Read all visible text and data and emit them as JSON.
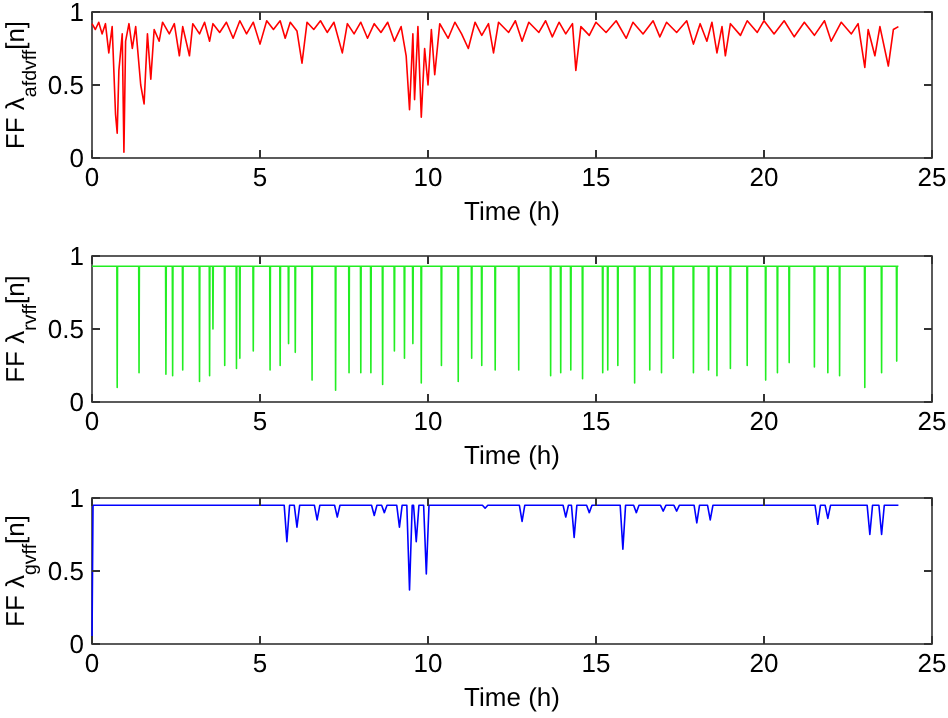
{
  "chart_data": [
    {
      "type": "line",
      "xlabel": "Time (h)",
      "ylabel": "FF λ$_{afdvff}$[n]",
      "xlim": [
        0,
        25
      ],
      "xticks": [
        0,
        5,
        10,
        15,
        20,
        25
      ],
      "ylim": [
        0,
        1
      ],
      "yticks": [
        0,
        0.5,
        1
      ],
      "series": [
        {
          "color": "#ff0000",
          "x": [
            0,
            0.1,
            0.2,
            0.3,
            0.4,
            0.5,
            0.6,
            0.7,
            0.75,
            0.8,
            0.9,
            0.95,
            1.0,
            1.1,
            1.2,
            1.3,
            1.45,
            1.55,
            1.65,
            1.75,
            1.85,
            2.0,
            2.1,
            2.3,
            2.45,
            2.6,
            2.7,
            2.9,
            3.0,
            3.2,
            3.35,
            3.5,
            3.6,
            3.8,
            4.0,
            4.2,
            4.4,
            4.6,
            4.8,
            5.0,
            5.2,
            5.4,
            5.6,
            5.75,
            5.9,
            6.1,
            6.25,
            6.4,
            6.6,
            6.8,
            7.0,
            7.2,
            7.45,
            7.6,
            7.8,
            8.0,
            8.2,
            8.4,
            8.6,
            8.8,
            9.0,
            9.2,
            9.35,
            9.45,
            9.55,
            9.6,
            9.7,
            9.8,
            9.9,
            10.0,
            10.1,
            10.2,
            10.35,
            10.6,
            10.8,
            11.0,
            11.2,
            11.4,
            11.6,
            11.8,
            11.95,
            12.1,
            12.4,
            12.6,
            12.8,
            13.0,
            13.3,
            13.5,
            13.7,
            13.9,
            14.1,
            14.3,
            14.4,
            14.55,
            14.8,
            15.0,
            15.3,
            15.6,
            15.9,
            16.1,
            16.4,
            16.7,
            16.9,
            17.1,
            17.4,
            17.7,
            17.9,
            18.1,
            18.3,
            18.45,
            18.6,
            18.75,
            18.85,
            19.0,
            19.3,
            19.5,
            19.8,
            20.0,
            20.3,
            20.6,
            20.9,
            21.2,
            21.5,
            21.8,
            22.0,
            22.3,
            22.6,
            22.8,
            23.0,
            23.1,
            23.3,
            23.45,
            23.7,
            23.85,
            24.0
          ],
          "values": [
            0.92,
            0.88,
            0.93,
            0.85,
            0.92,
            0.72,
            0.9,
            0.3,
            0.17,
            0.6,
            0.85,
            0.04,
            0.8,
            0.92,
            0.75,
            0.9,
            0.5,
            0.37,
            0.85,
            0.54,
            0.88,
            0.8,
            0.93,
            0.85,
            0.92,
            0.7,
            0.9,
            0.7,
            0.92,
            0.85,
            0.93,
            0.8,
            0.92,
            0.86,
            0.93,
            0.82,
            0.94,
            0.85,
            0.93,
            0.78,
            0.94,
            0.88,
            0.94,
            0.82,
            0.93,
            0.87,
            0.65,
            0.93,
            0.88,
            0.94,
            0.86,
            0.93,
            0.72,
            0.92,
            0.85,
            0.93,
            0.82,
            0.92,
            0.86,
            0.93,
            0.8,
            0.9,
            0.7,
            0.33,
            0.85,
            0.4,
            0.9,
            0.28,
            0.75,
            0.5,
            0.88,
            0.57,
            0.92,
            0.82,
            0.93,
            0.85,
            0.75,
            0.93,
            0.84,
            0.92,
            0.72,
            0.93,
            0.86,
            0.94,
            0.8,
            0.93,
            0.86,
            0.94,
            0.83,
            0.93,
            0.85,
            0.92,
            0.6,
            0.9,
            0.84,
            0.93,
            0.86,
            0.94,
            0.82,
            0.93,
            0.85,
            0.94,
            0.83,
            0.93,
            0.86,
            0.94,
            0.78,
            0.92,
            0.8,
            0.93,
            0.72,
            0.9,
            0.7,
            0.92,
            0.84,
            0.94,
            0.86,
            0.94,
            0.85,
            0.94,
            0.83,
            0.93,
            0.84,
            0.94,
            0.8,
            0.93,
            0.85,
            0.92,
            0.62,
            0.88,
            0.7,
            0.9,
            0.63,
            0.88,
            0.9
          ]
        }
      ]
    },
    {
      "type": "line",
      "xlabel": "Time (h)",
      "ylabel": "FF λ$_{rvff}$[n]",
      "xlim": [
        0,
        25
      ],
      "xticks": [
        0,
        5,
        10,
        15,
        20,
        25
      ],
      "ylim": [
        0,
        1
      ],
      "yticks": [
        0,
        0.5,
        1
      ],
      "series": [
        {
          "color": "#22ee22",
          "x": [
            0,
            0.74,
            0.75,
            0.76,
            1.39,
            1.4,
            1.41,
            2.19,
            2.2,
            2.21,
            2.39,
            2.4,
            2.41,
            2.69,
            2.7,
            2.71,
            3.19,
            3.2,
            3.21,
            3.49,
            3.5,
            3.51,
            3.59,
            3.6,
            3.61,
            3.94,
            3.95,
            3.96,
            4.29,
            4.3,
            4.31,
            4.39,
            4.4,
            4.41,
            4.79,
            4.8,
            4.81,
            5.29,
            5.3,
            5.31,
            5.59,
            5.6,
            5.61,
            5.84,
            5.85,
            5.86,
            6.04,
            6.05,
            6.06,
            6.54,
            6.55,
            6.56,
            7.24,
            7.25,
            7.26,
            7.64,
            7.65,
            7.66,
            7.99,
            8,
            8.01,
            8.29,
            8.3,
            8.31,
            8.64,
            8.65,
            8.66,
            8.99,
            9,
            9.01,
            9.29,
            9.3,
            9.31,
            9.54,
            9.55,
            9.56,
            9.79,
            9.8,
            9.81,
            10.39,
            10.4,
            10.41,
            10.89,
            10.9,
            10.91,
            11.29,
            11.3,
            11.31,
            11.59,
            11.6,
            11.61,
            11.99,
            12,
            12.01,
            12.69,
            12.7,
            12.71,
            13.64,
            13.65,
            13.66,
            13.94,
            13.95,
            13.96,
            14.24,
            14.25,
            14.26,
            14.59,
            14.6,
            14.61,
            15.19,
            15.2,
            15.21,
            15.34,
            15.35,
            15.36,
            15.64,
            15.65,
            15.66,
            16.14,
            16.15,
            16.16,
            16.59,
            16.6,
            16.61,
            16.94,
            16.95,
            16.96,
            17.29,
            17.3,
            17.31,
            17.89,
            17.9,
            17.91,
            18.34,
            18.35,
            18.36,
            18.59,
            18.6,
            18.61,
            18.99,
            19,
            19.01,
            19.49,
            19.5,
            19.51,
            20.04,
            20.05,
            20.06,
            20.39,
            20.4,
            20.41,
            20.74,
            20.75,
            20.76,
            21.49,
            21.5,
            21.51,
            21.89,
            21.9,
            21.91,
            22.24,
            22.25,
            22.26,
            22.99,
            23,
            23.01,
            23.49,
            23.5,
            23.51,
            23.94,
            23.95,
            23.96,
            24
          ],
          "values": [
            0.93,
            0.93,
            0.1,
            0.93,
            0.93,
            0.2,
            0.93,
            0.93,
            0.19,
            0.93,
            0.93,
            0.18,
            0.93,
            0.93,
            0.22,
            0.93,
            0.93,
            0.14,
            0.93,
            0.93,
            0.18,
            0.93,
            0.93,
            0.5,
            0.93,
            0.93,
            0.25,
            0.93,
            0.93,
            0.23,
            0.93,
            0.93,
            0.3,
            0.93,
            0.93,
            0.35,
            0.93,
            0.93,
            0.22,
            0.93,
            0.93,
            0.25,
            0.93,
            0.93,
            0.4,
            0.93,
            0.93,
            0.34,
            0.93,
            0.93,
            0.15,
            0.93,
            0.93,
            0.08,
            0.93,
            0.93,
            0.2,
            0.93,
            0.93,
            0.2,
            0.93,
            0.93,
            0.2,
            0.93,
            0.93,
            0.12,
            0.93,
            0.93,
            0.35,
            0.93,
            0.93,
            0.3,
            0.93,
            0.93,
            0.4,
            0.93,
            0.93,
            0.13,
            0.93,
            0.93,
            0.25,
            0.93,
            0.93,
            0.14,
            0.93,
            0.93,
            0.3,
            0.93,
            0.93,
            0.25,
            0.93,
            0.93,
            0.22,
            0.93,
            0.93,
            0.22,
            0.93,
            0.93,
            0.18,
            0.93,
            0.93,
            0.2,
            0.93,
            0.93,
            0.22,
            0.93,
            0.93,
            0.16,
            0.93,
            0.93,
            0.2,
            0.93,
            0.93,
            0.22,
            0.93,
            0.93,
            0.25,
            0.93,
            0.93,
            0.13,
            0.93,
            0.93,
            0.22,
            0.93,
            0.93,
            0.2,
            0.93,
            0.93,
            0.3,
            0.93,
            0.93,
            0.2,
            0.93,
            0.93,
            0.22,
            0.93,
            0.93,
            0.18,
            0.93,
            0.93,
            0.23,
            0.93,
            0.93,
            0.25,
            0.93,
            0.93,
            0.15,
            0.93,
            0.93,
            0.2,
            0.93,
            0.93,
            0.27,
            0.93,
            0.93,
            0.24,
            0.93,
            0.93,
            0.2,
            0.93,
            0.93,
            0.18,
            0.93,
            0.93,
            0.1,
            0.93,
            0.93,
            0.2,
            0.93,
            0.93,
            0.28,
            0.93,
            0.93
          ]
        }
      ]
    },
    {
      "type": "line",
      "xlabel": "Time (h)",
      "ylabel": "FF λ$_{gvff}$[n]",
      "xlim": [
        0,
        25
      ],
      "xticks": [
        0,
        5,
        10,
        15,
        20,
        25
      ],
      "ylim": [
        0,
        1
      ],
      "yticks": [
        0,
        0.5,
        1
      ],
      "series": [
        {
          "color": "#0000ff",
          "x": [
            0,
            0.03,
            5.72,
            5.8,
            5.88,
            6.02,
            6.1,
            6.18,
            6.62,
            6.7,
            6.78,
            7.22,
            7.3,
            7.38,
            8.32,
            8.4,
            8.48,
            8.62,
            8.7,
            8.78,
            9.07,
            9.15,
            9.23,
            9.37,
            9.45,
            9.53,
            9.57,
            9.65,
            9.73,
            9.87,
            9.95,
            10.03,
            11.62,
            11.7,
            11.78,
            12.72,
            12.8,
            12.88,
            14.02,
            14.1,
            14.18,
            14.27,
            14.35,
            14.43,
            14.72,
            14.8,
            14.88,
            15.72,
            15.8,
            15.88,
            16.12,
            16.2,
            16.28,
            16.92,
            17.0,
            17.08,
            17.32,
            17.4,
            17.48,
            17.92,
            18.0,
            18.08,
            18.32,
            18.4,
            18.48,
            21.52,
            21.6,
            21.68,
            21.82,
            21.9,
            21.98,
            23.07,
            23.15,
            23.23,
            23.42,
            23.5,
            23.58,
            24
          ],
          "values": [
            0,
            0.95,
            0.95,
            0.7,
            0.95,
            0.95,
            0.8,
            0.95,
            0.95,
            0.85,
            0.95,
            0.95,
            0.87,
            0.95,
            0.95,
            0.88,
            0.95,
            0.95,
            0.9,
            0.95,
            0.95,
            0.8,
            0.95,
            0.95,
            0.37,
            0.95,
            0.95,
            0.7,
            0.95,
            0.95,
            0.48,
            0.95,
            0.95,
            0.93,
            0.95,
            0.95,
            0.84,
            0.95,
            0.95,
            0.87,
            0.95,
            0.95,
            0.73,
            0.95,
            0.95,
            0.9,
            0.95,
            0.95,
            0.65,
            0.95,
            0.95,
            0.9,
            0.95,
            0.95,
            0.91,
            0.95,
            0.95,
            0.91,
            0.95,
            0.95,
            0.83,
            0.95,
            0.95,
            0.85,
            0.95,
            0.95,
            0.82,
            0.95,
            0.95,
            0.86,
            0.95,
            0.95,
            0.75,
            0.95,
            0.95,
            0.75,
            0.95,
            0.95
          ]
        }
      ]
    }
  ]
}
